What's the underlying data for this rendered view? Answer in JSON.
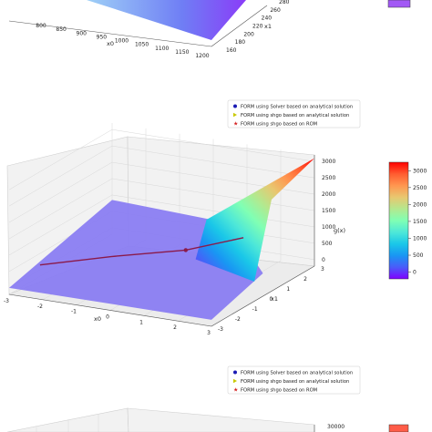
{
  "colors": {
    "colormap": [
      "#8000ff",
      "#4a5cf9",
      "#1996f3",
      "#1ac7e8",
      "#4ee8d8",
      "#80ffb4",
      "#b4e88e",
      "#e8c770",
      "#ff9650",
      "#ff5c30",
      "#ff0000"
    ],
    "solver_marker": "#1a1ab4",
    "shgo_marker": "#c8c800",
    "rom_marker": "#d42020",
    "path_line": "#8b1a4a"
  },
  "chart_data": [
    {
      "type": "surface",
      "partially_visible": true,
      "axes": {
        "x": {
          "label": "x0",
          "ticks": [
            "800",
            "850",
            "900",
            "950",
            "1000",
            "1050",
            "1100",
            "1150",
            "1200"
          ]
        },
        "y": {
          "label": "x1",
          "ticks": [
            "160",
            "180",
            "200",
            "220",
            "240",
            "260",
            "280"
          ]
        }
      }
    },
    {
      "type": "surface",
      "zlabel": "g(x)",
      "axes": {
        "x": {
          "label": "x0",
          "ticks": [
            "-3",
            "-2",
            "-1",
            "0",
            "1",
            "2",
            "3"
          ],
          "range": [
            -3,
            3
          ]
        },
        "y": {
          "label": "x1",
          "ticks": [
            "-3",
            "-2",
            "-1",
            "0",
            "1",
            "2",
            "3"
          ],
          "range": [
            -3,
            3
          ]
        },
        "z": {
          "ticks": [
            "0",
            "500",
            "1000",
            "1500",
            "2000",
            "2500",
            "3000"
          ],
          "range": [
            -200,
            3200
          ]
        }
      },
      "legend": {
        "placement": "top-right",
        "entries": [
          {
            "label": "FORM using Solver based on analytical solution",
            "marker": "circle",
            "color": "#1a1ab4"
          },
          {
            "label": "FORM using shgo based on analytical solution",
            "marker": "triangle",
            "color": "#c8c800"
          },
          {
            "label": "FORM using shgo based on ROM",
            "marker": "star",
            "color": "#d42020"
          }
        ]
      },
      "colorbar": {
        "ticks": [
          "0",
          "500",
          "1000",
          "1500",
          "2000",
          "2500",
          "3000"
        ],
        "range": [
          -200,
          3250
        ]
      },
      "points": [
        {
          "x0": 0.1,
          "x1": 1.2,
          "g": 370
        }
      ]
    },
    {
      "type": "surface",
      "partially_visible": true,
      "axes": {
        "z": {
          "ticks": [
            "30000"
          ]
        }
      },
      "legend": {
        "placement": "top-right",
        "entries": [
          {
            "label": "FORM using Solver based on analytical solution",
            "marker": "circle",
            "color": "#1a1ab4"
          },
          {
            "label": "FORM using shgo based on analytical solution",
            "marker": "triangle",
            "color": "#c8c800"
          },
          {
            "label": "FORM using shgo based on ROM",
            "marker": "star",
            "color": "#d42020"
          }
        ]
      }
    }
  ]
}
